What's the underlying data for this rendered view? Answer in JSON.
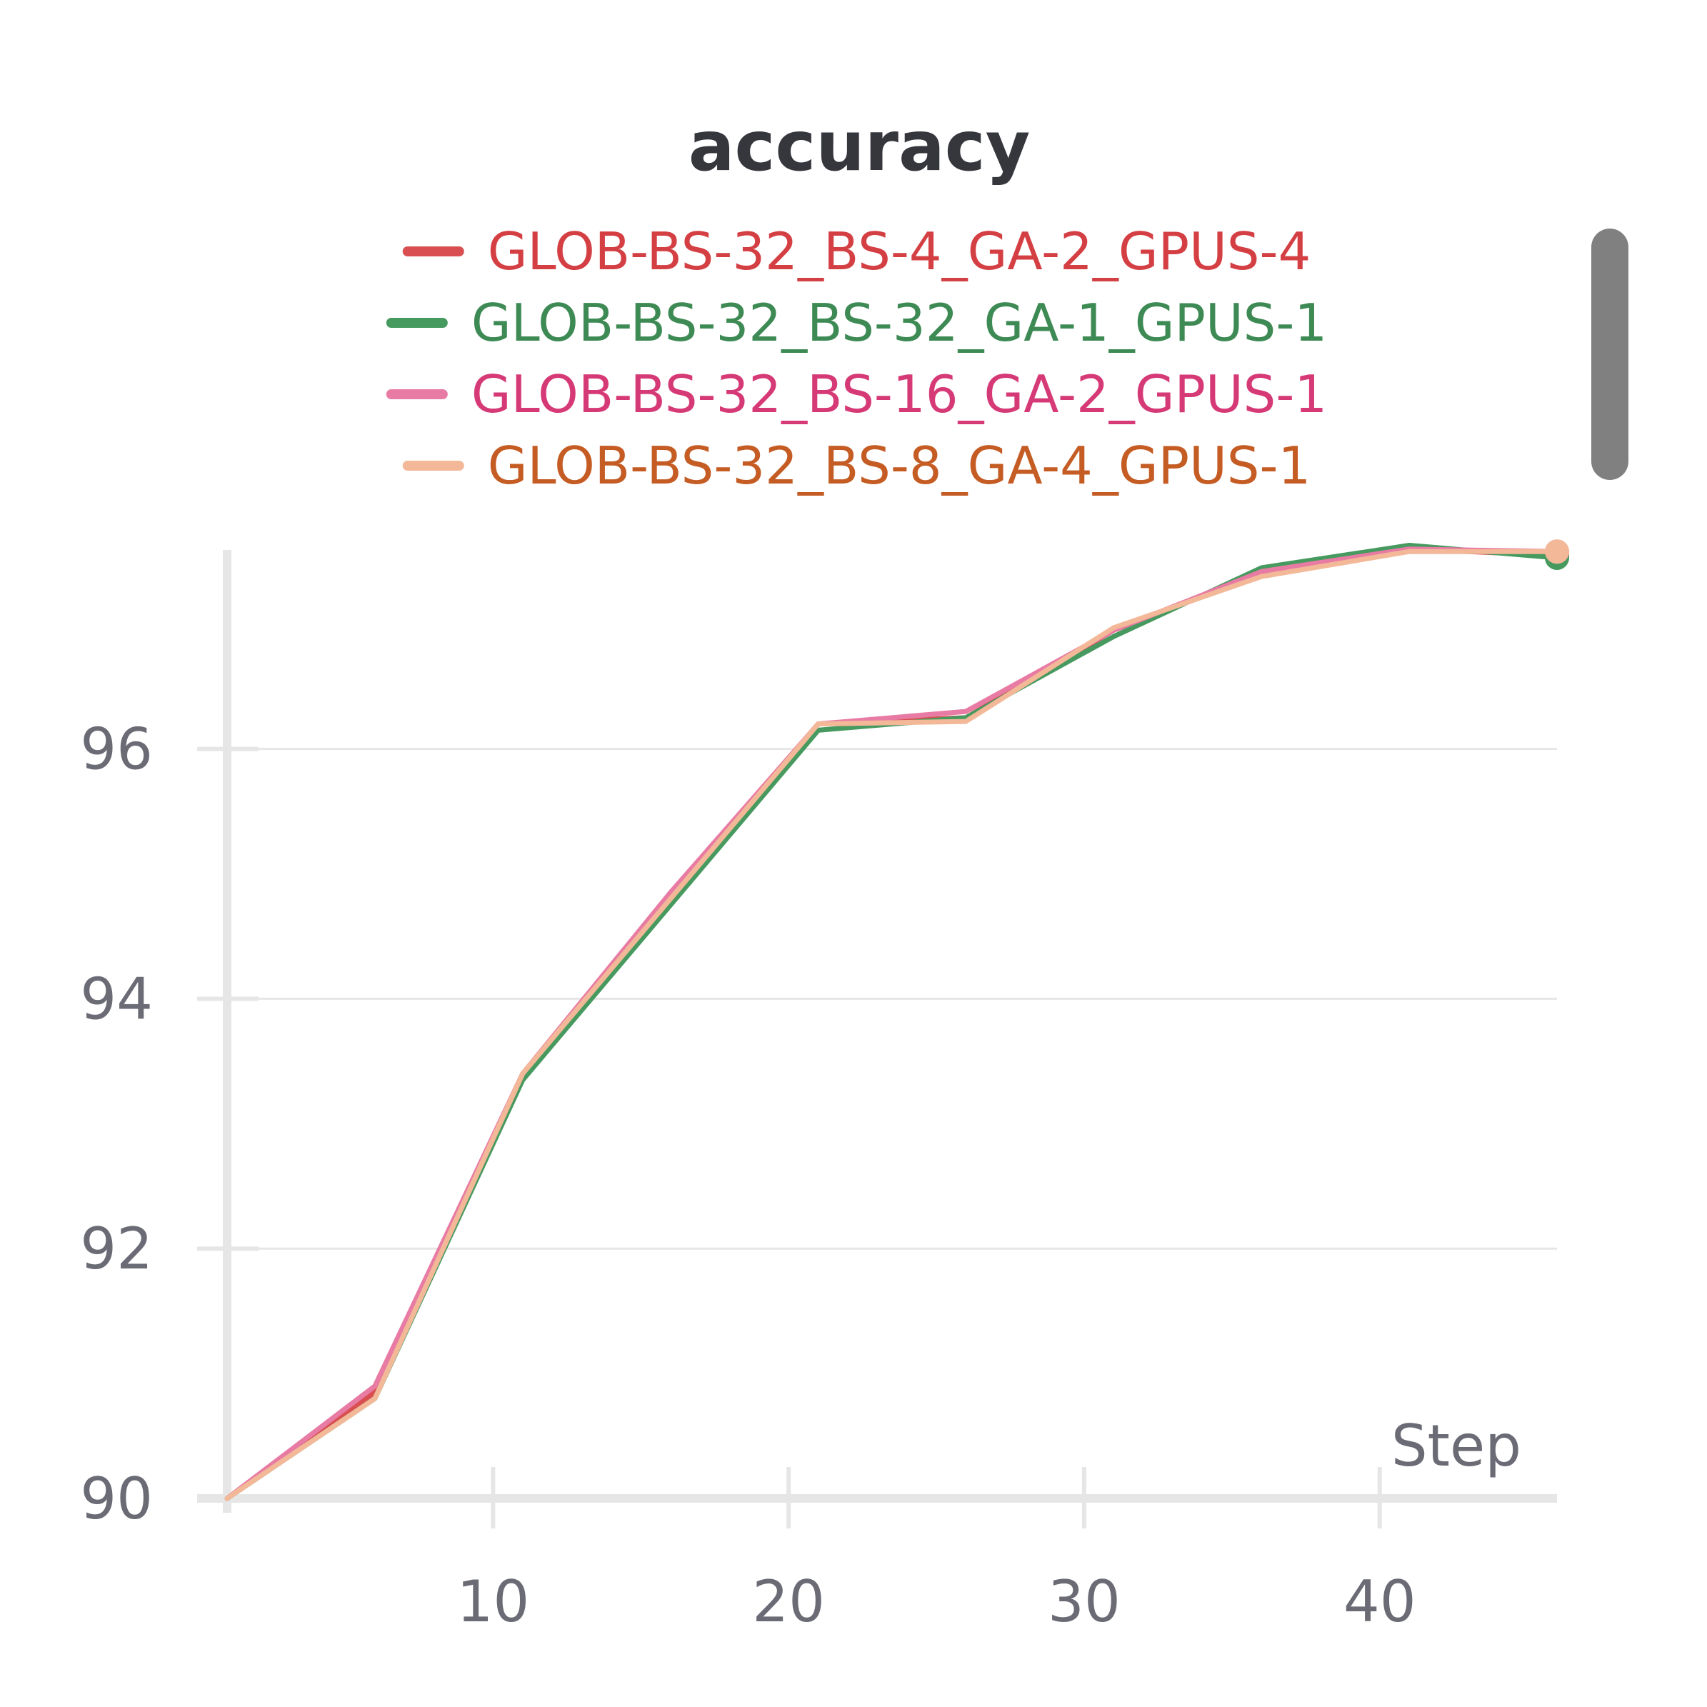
{
  "chart_data": {
    "type": "line",
    "title": "accuracy",
    "xlabel": "Step",
    "ylabel": "",
    "xlim": [
      1,
      46
    ],
    "ylim": [
      90,
      97.65
    ],
    "x_ticks": [
      10,
      20,
      30,
      40
    ],
    "y_ticks": [
      90,
      92,
      94,
      96
    ],
    "grid": "horizontal",
    "legend_position": "top-center",
    "x": [
      1,
      6,
      11,
      16,
      21,
      26,
      31,
      36,
      41,
      46
    ],
    "series": [
      {
        "name": "GLOB-BS-32_BS-4_GA-2_GPUS-4",
        "line_color": "#d94f51",
        "text_color": "#d43f44",
        "values": [
          90.0,
          90.85,
          93.4,
          94.8,
          96.2,
          96.25,
          96.95,
          97.4,
          97.6,
          97.55
        ]
      },
      {
        "name": "GLOB-BS-32_BS-32_GA-1_GPUS-1",
        "line_color": "#479a5f",
        "text_color": "#3e8a55",
        "values": [
          90.0,
          90.8,
          93.35,
          94.75,
          96.15,
          96.25,
          96.9,
          97.45,
          97.63,
          97.53
        ]
      },
      {
        "name": "GLOB-BS-32_BS-16_GA-2_GPUS-1",
        "line_color": "#e87ba4",
        "text_color": "#d63a76",
        "values": [
          90.0,
          90.9,
          93.4,
          94.85,
          96.2,
          96.3,
          96.95,
          97.42,
          97.6,
          97.58
        ]
      },
      {
        "name": "GLOB-BS-32_BS-8_GA-4_GPUS-1",
        "line_color": "#f3b898",
        "text_color": "#c45c24",
        "values": [
          90.0,
          90.8,
          93.4,
          94.8,
          96.2,
          96.22,
          96.97,
          97.38,
          97.58,
          97.58
        ]
      }
    ]
  }
}
